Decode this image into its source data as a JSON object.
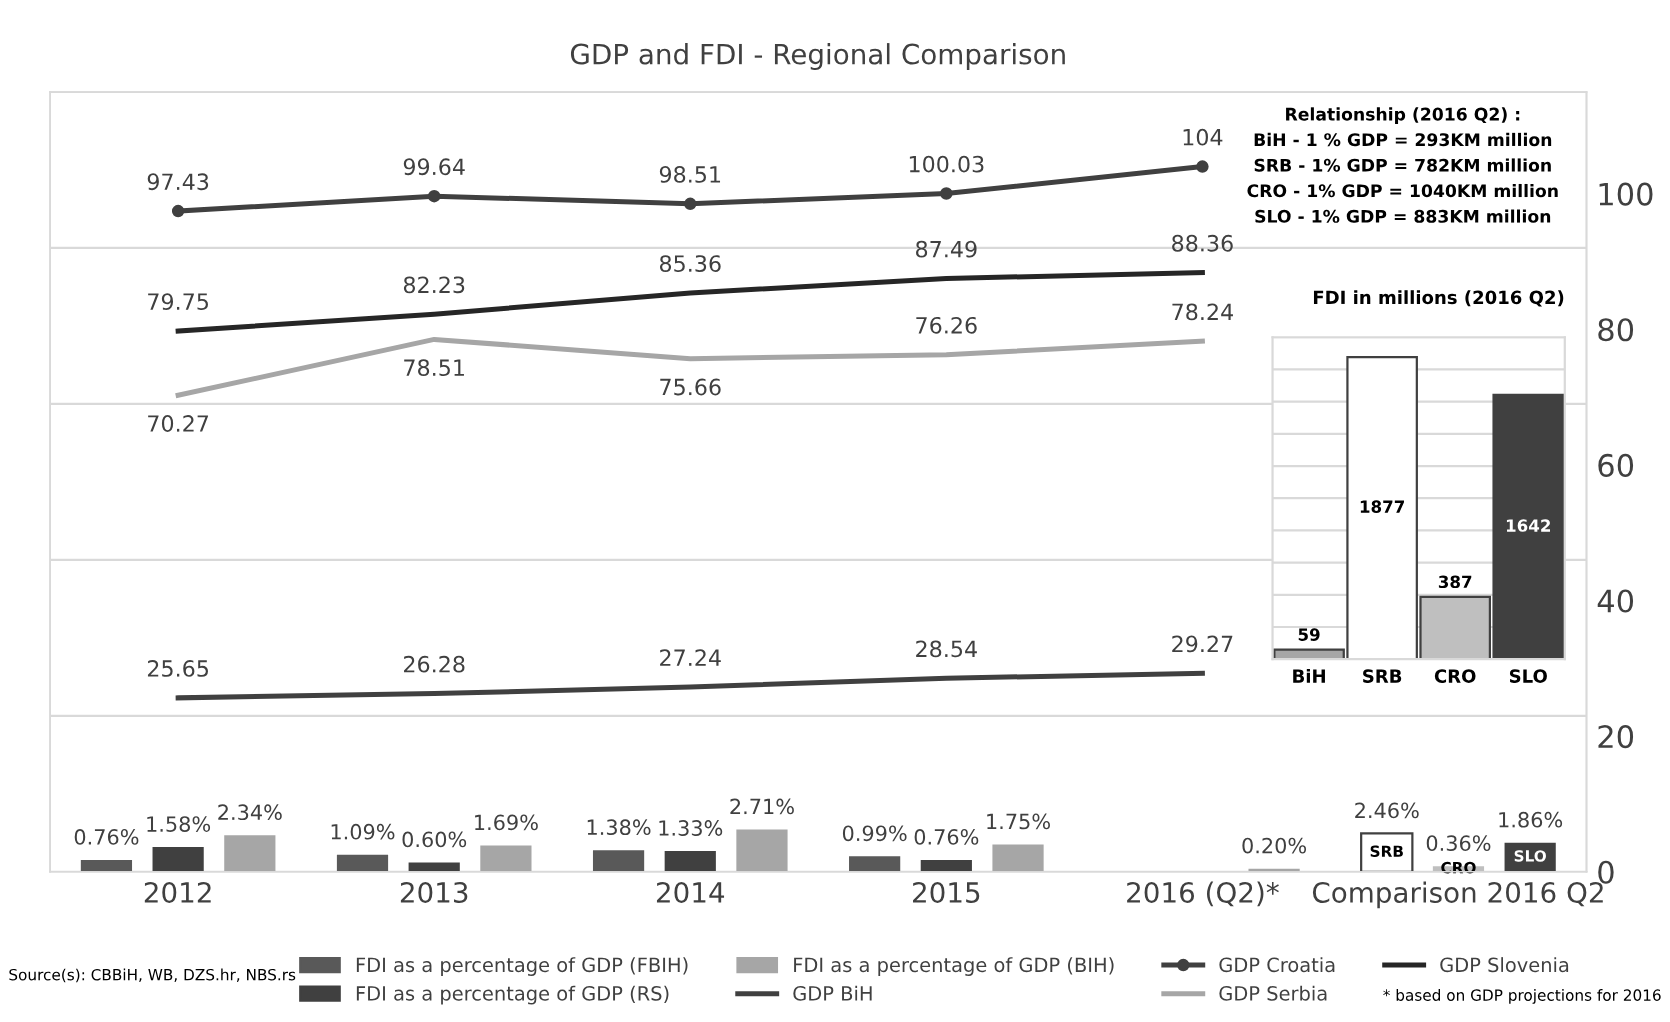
{
  "chart_data": [
    {
      "type": "bar",
      "title": "GDP and FDI - Regional Comparison",
      "categories": [
        "2012",
        "2013",
        "2014",
        "2015",
        "2016 (Q2)*",
        "Comparison 2016 Q2"
      ],
      "ylim": [
        0,
        50
      ],
      "yticks": [
        {
          "value": 0,
          "label": null
        },
        {
          "value": 10,
          "label": null
        },
        {
          "value": 20,
          "label": null
        },
        {
          "value": 30,
          "label": null
        },
        {
          "value": 40,
          "label": null
        },
        {
          "value": 50,
          "label": null
        }
      ],
      "y2lim": [
        0,
        115
      ],
      "y2ticks": [
        0,
        20,
        40,
        60,
        80,
        100
      ],
      "grid": "y",
      "legend": "bottom",
      "series": [
        {
          "name": "FDI as a percentage of GDP (FBIH)",
          "type": "bar",
          "color": "#595959",
          "values": [
            0.76,
            1.09,
            1.38,
            0.99,
            null,
            null
          ],
          "value_labels": [
            "0.76%",
            "1.09%",
            "1.38%",
            "0.99%",
            null,
            null
          ]
        },
        {
          "name": "FDI as a percentage of GDP (RS)",
          "type": "bar",
          "color": "#404040",
          "values": [
            1.58,
            0.6,
            1.33,
            0.76,
            null,
            null
          ],
          "value_labels": [
            "1.58%",
            "0.60%",
            "1.33%",
            "0.76%",
            null,
            null
          ]
        },
        {
          "name": "FDI as a percentage of GDP (BIH)",
          "type": "bar",
          "color": "#a6a6a6",
          "values": [
            2.34,
            1.69,
            2.71,
            1.75,
            0.2,
            null
          ],
          "value_labels": [
            "2.34%",
            "1.69%",
            "2.71%",
            "1.75%",
            "0.20%",
            null
          ]
        },
        {
          "name": "SRB",
          "type": "bar",
          "color": "#ffffff",
          "values": [
            null,
            null,
            null,
            null,
            null,
            2.46
          ],
          "value_labels": [
            null,
            null,
            null,
            null,
            null,
            "2.46%"
          ]
        },
        {
          "name": "CRO",
          "type": "bar",
          "color": "#bfbfbf",
          "values": [
            null,
            null,
            null,
            null,
            null,
            0.36
          ],
          "value_labels": [
            null,
            null,
            null,
            null,
            null,
            "0.36%"
          ]
        },
        {
          "name": "SLO",
          "type": "bar",
          "color": "#404040",
          "values": [
            null,
            null,
            null,
            null,
            null,
            1.86
          ],
          "value_labels": [
            null,
            null,
            null,
            null,
            null,
            "1.86%"
          ]
        },
        {
          "name": "GDP BiH",
          "type": "line",
          "axis": "y2",
          "color": "#404040",
          "marker": "none",
          "data_labels": true,
          "values": [
            25.65,
            26.28,
            27.24,
            28.54,
            29.27,
            null
          ]
        },
        {
          "name": "GDP Croatia",
          "type": "line",
          "axis": "y2",
          "color": "#404040",
          "marker": "circle",
          "data_labels": true,
          "values": [
            97.43,
            99.64,
            98.51,
            100.03,
            104,
            null
          ]
        },
        {
          "name": "GDP Serbia",
          "type": "line",
          "axis": "y2",
          "color": "#a6a6a6",
          "marker": "none",
          "data_labels": true,
          "values": [
            70.27,
            78.51,
            75.66,
            76.26,
            78.24,
            null
          ]
        },
        {
          "name": "GDP Slovenia",
          "type": "line",
          "axis": "y2",
          "color": "#262626",
          "marker": "none",
          "data_labels": true,
          "values": [
            79.75,
            82.23,
            85.36,
            87.49,
            88.36,
            null
          ]
        }
      ],
      "annotations": [
        "Relationship (2016 Q2) :",
        "BiH - 1 % GDP = 293KM million",
        "SRB - 1% GDP = 782KM million",
        "CRO - 1% GDP = 1040KM million",
        "SLO - 1% GDP = 883KM million",
        "Source(s): CBBiH, WB, DZS.hr, NBS.rs",
        "* based on GDP projections for 2016"
      ]
    },
    {
      "type": "bar",
      "title": "FDI in millions (2016 Q2)",
      "categories": [
        "BiH",
        "SRB",
        "CRO",
        "SLO"
      ],
      "values": [
        59,
        1877,
        387,
        1642
      ],
      "colors": [
        "#a6a6a6",
        "#ffffff",
        "#bfbfbf",
        "#404040"
      ],
      "data_labels": true,
      "ylim": [
        0,
        2000
      ],
      "yticks": [
        {
          "value": 0,
          "label": null
        },
        {
          "value": 200,
          "label": null
        },
        {
          "value": 400,
          "label": null
        },
        {
          "value": 600,
          "label": null
        },
        {
          "value": 800,
          "label": null
        },
        {
          "value": 1000,
          "label": null
        },
        {
          "value": 1200,
          "label": null
        },
        {
          "value": 1400,
          "label": null
        },
        {
          "value": 1600,
          "label": null
        },
        {
          "value": 1800,
          "label": null
        },
        {
          "value": 2000,
          "label": null
        }
      ],
      "grid": "y"
    }
  ]
}
